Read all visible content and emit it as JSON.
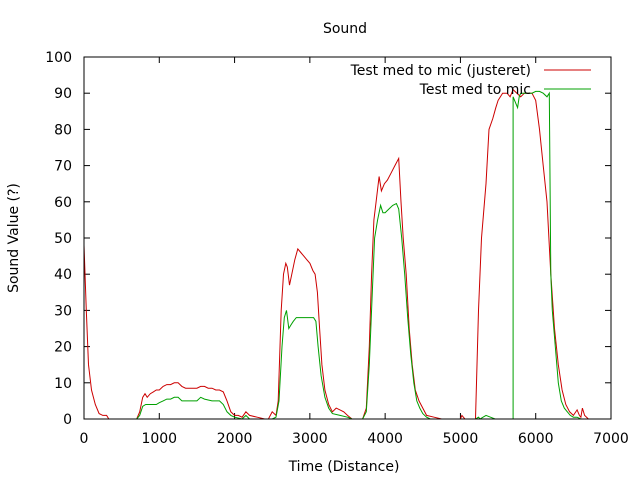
{
  "chart_data": {
    "type": "line",
    "title": "Sound",
    "xlabel": "Time (Distance)",
    "ylabel": "Sound Value (?)",
    "xlim": [
      0,
      7000
    ],
    "ylim": [
      0,
      100
    ],
    "xticks": [
      0,
      1000,
      2000,
      3000,
      4000,
      5000,
      6000,
      7000
    ],
    "yticks": [
      0,
      10,
      20,
      30,
      40,
      50,
      60,
      70,
      80,
      90,
      100
    ],
    "grid": false,
    "legend_position": "top-right",
    "series": [
      {
        "name": "Test med to mic (justeret)",
        "color": "#cc0000",
        "points": [
          [
            0,
            48
          ],
          [
            30,
            30
          ],
          [
            60,
            15
          ],
          [
            100,
            8
          ],
          [
            150,
            4
          ],
          [
            200,
            1.5
          ],
          [
            250,
            1
          ],
          [
            300,
            1
          ],
          [
            330,
            0
          ],
          [
            700,
            0
          ],
          [
            740,
            2
          ],
          [
            780,
            6
          ],
          [
            810,
            7
          ],
          [
            840,
            6
          ],
          [
            880,
            7
          ],
          [
            920,
            7.5
          ],
          [
            960,
            8
          ],
          [
            1000,
            8
          ],
          [
            1050,
            9
          ],
          [
            1100,
            9.5
          ],
          [
            1150,
            9.5
          ],
          [
            1200,
            10
          ],
          [
            1250,
            10
          ],
          [
            1300,
            9
          ],
          [
            1350,
            8.5
          ],
          [
            1400,
            8.5
          ],
          [
            1450,
            8.5
          ],
          [
            1500,
            8.5
          ],
          [
            1550,
            9
          ],
          [
            1600,
            9
          ],
          [
            1650,
            8.5
          ],
          [
            1700,
            8.5
          ],
          [
            1750,
            8
          ],
          [
            1800,
            8
          ],
          [
            1850,
            7.5
          ],
          [
            1900,
            5
          ],
          [
            1950,
            2
          ],
          [
            2000,
            1
          ],
          [
            2050,
            1
          ],
          [
            2100,
            0.5
          ],
          [
            2150,
            2
          ],
          [
            2200,
            1
          ],
          [
            2300,
            0.5
          ],
          [
            2400,
            0
          ],
          [
            2450,
            0
          ],
          [
            2500,
            2
          ],
          [
            2550,
            1
          ],
          [
            2580,
            5
          ],
          [
            2620,
            30
          ],
          [
            2650,
            40
          ],
          [
            2680,
            43
          ],
          [
            2700,
            42
          ],
          [
            2730,
            37
          ],
          [
            2760,
            40
          ],
          [
            2800,
            44
          ],
          [
            2840,
            47
          ],
          [
            2880,
            46
          ],
          [
            2920,
            45
          ],
          [
            2960,
            44
          ],
          [
            3000,
            43
          ],
          [
            3040,
            41
          ],
          [
            3070,
            40
          ],
          [
            3100,
            35
          ],
          [
            3130,
            25
          ],
          [
            3160,
            15
          ],
          [
            3200,
            8
          ],
          [
            3250,
            4
          ],
          [
            3300,
            2
          ],
          [
            3350,
            3
          ],
          [
            3400,
            2.5
          ],
          [
            3450,
            2
          ],
          [
            3500,
            1
          ],
          [
            3560,
            0
          ],
          [
            3700,
            0
          ],
          [
            3750,
            3
          ],
          [
            3790,
            20
          ],
          [
            3820,
            40
          ],
          [
            3850,
            55
          ],
          [
            3880,
            60
          ],
          [
            3920,
            67
          ],
          [
            3950,
            63
          ],
          [
            3990,
            65
          ],
          [
            4030,
            66
          ],
          [
            4080,
            68
          ],
          [
            4130,
            70
          ],
          [
            4180,
            72
          ],
          [
            4210,
            60
          ],
          [
            4240,
            50
          ],
          [
            4280,
            40
          ],
          [
            4320,
            25
          ],
          [
            4360,
            15
          ],
          [
            4400,
            8
          ],
          [
            4450,
            5
          ],
          [
            4500,
            3
          ],
          [
            4550,
            1
          ],
          [
            4650,
            0.5
          ],
          [
            4750,
            0
          ],
          [
            5000,
            0
          ],
          [
            5020,
            1
          ],
          [
            5060,
            0
          ],
          [
            5200,
            0
          ],
          [
            5240,
            30
          ],
          [
            5280,
            50
          ],
          [
            5300,
            55
          ],
          [
            5340,
            65
          ],
          [
            5380,
            80
          ],
          [
            5430,
            83
          ],
          [
            5470,
            86
          ],
          [
            5500,
            88
          ],
          [
            5560,
            90
          ],
          [
            5620,
            90
          ],
          [
            5660,
            89
          ],
          [
            5700,
            91
          ],
          [
            5750,
            90
          ],
          [
            5800,
            89
          ],
          [
            5850,
            90
          ],
          [
            5900,
            90
          ],
          [
            5950,
            90
          ],
          [
            6000,
            88
          ],
          [
            6050,
            80
          ],
          [
            6100,
            70
          ],
          [
            6150,
            60
          ],
          [
            6200,
            40
          ],
          [
            6250,
            25
          ],
          [
            6300,
            15
          ],
          [
            6350,
            8
          ],
          [
            6400,
            4
          ],
          [
            6450,
            2
          ],
          [
            6500,
            1
          ],
          [
            6550,
            2.5
          ],
          [
            6580,
            1
          ],
          [
            6600,
            0.5
          ],
          [
            6620,
            3
          ],
          [
            6650,
            1
          ],
          [
            6700,
            0
          ]
        ]
      },
      {
        "name": "Test med to mic",
        "color": "#00a000",
        "points": [
          [
            0,
            0
          ],
          [
            700,
            0
          ],
          [
            740,
            1
          ],
          [
            780,
            3.5
          ],
          [
            820,
            4
          ],
          [
            900,
            4
          ],
          [
            960,
            4
          ],
          [
            1000,
            4.5
          ],
          [
            1050,
            5
          ],
          [
            1100,
            5.5
          ],
          [
            1150,
            5.5
          ],
          [
            1200,
            6
          ],
          [
            1250,
            6
          ],
          [
            1300,
            5
          ],
          [
            1400,
            5
          ],
          [
            1500,
            5
          ],
          [
            1550,
            6
          ],
          [
            1600,
            5.5
          ],
          [
            1700,
            5
          ],
          [
            1800,
            5
          ],
          [
            1850,
            4
          ],
          [
            1900,
            2
          ],
          [
            1950,
            1
          ],
          [
            2000,
            0.5
          ],
          [
            2100,
            0
          ],
          [
            2150,
            1
          ],
          [
            2200,
            0
          ],
          [
            2500,
            0
          ],
          [
            2550,
            0.5
          ],
          [
            2590,
            5
          ],
          [
            2630,
            20
          ],
          [
            2660,
            28
          ],
          [
            2690,
            30
          ],
          [
            2720,
            25
          ],
          [
            2750,
            26
          ],
          [
            2780,
            27
          ],
          [
            2820,
            28
          ],
          [
            2900,
            28
          ],
          [
            2950,
            28
          ],
          [
            3000,
            28
          ],
          [
            3050,
            28
          ],
          [
            3080,
            27
          ],
          [
            3110,
            20
          ],
          [
            3150,
            12
          ],
          [
            3200,
            6
          ],
          [
            3250,
            3
          ],
          [
            3300,
            1.5
          ],
          [
            3400,
            1
          ],
          [
            3500,
            0.5
          ],
          [
            3560,
            0
          ],
          [
            3700,
            0
          ],
          [
            3750,
            2
          ],
          [
            3790,
            15
          ],
          [
            3830,
            35
          ],
          [
            3860,
            50
          ],
          [
            3900,
            55
          ],
          [
            3940,
            59
          ],
          [
            3970,
            57
          ],
          [
            4000,
            57
          ],
          [
            4050,
            58
          ],
          [
            4100,
            59
          ],
          [
            4150,
            59.5
          ],
          [
            4180,
            58
          ],
          [
            4220,
            50
          ],
          [
            4260,
            40
          ],
          [
            4300,
            28
          ],
          [
            4340,
            18
          ],
          [
            4380,
            10
          ],
          [
            4420,
            5
          ],
          [
            4460,
            3
          ],
          [
            4500,
            1.5
          ],
          [
            4550,
            0.5
          ],
          [
            4600,
            0
          ],
          [
            5200,
            0
          ],
          [
            5240,
            0.5
          ],
          [
            5260,
            0
          ],
          [
            5300,
            0.5
          ],
          [
            5340,
            1
          ],
          [
            5400,
            0.5
          ],
          [
            5460,
            0
          ],
          [
            5500,
            0
          ],
          [
            5550,
            0
          ],
          [
            5600,
            0
          ],
          [
            5650,
            0
          ],
          [
            5700,
            0
          ],
          [
            5700,
            89
          ],
          [
            5720,
            88
          ],
          [
            5740,
            87
          ],
          [
            5760,
            86
          ],
          [
            5780,
            89
          ],
          [
            5800,
            90
          ],
          [
            5850,
            90
          ],
          [
            5900,
            90
          ],
          [
            5950,
            90
          ],
          [
            6000,
            90.5
          ],
          [
            6050,
            90.5
          ],
          [
            6100,
            90
          ],
          [
            6150,
            89
          ],
          [
            6180,
            90
          ],
          [
            6200,
            40
          ],
          [
            6220,
            30
          ],
          [
            6260,
            20
          ],
          [
            6300,
            10
          ],
          [
            6340,
            5
          ],
          [
            6380,
            3
          ],
          [
            6420,
            2
          ],
          [
            6460,
            1
          ],
          [
            6500,
            0.5
          ],
          [
            6550,
            0.5
          ],
          [
            6600,
            0
          ],
          [
            6650,
            0
          ],
          [
            6700,
            0
          ]
        ]
      }
    ]
  }
}
